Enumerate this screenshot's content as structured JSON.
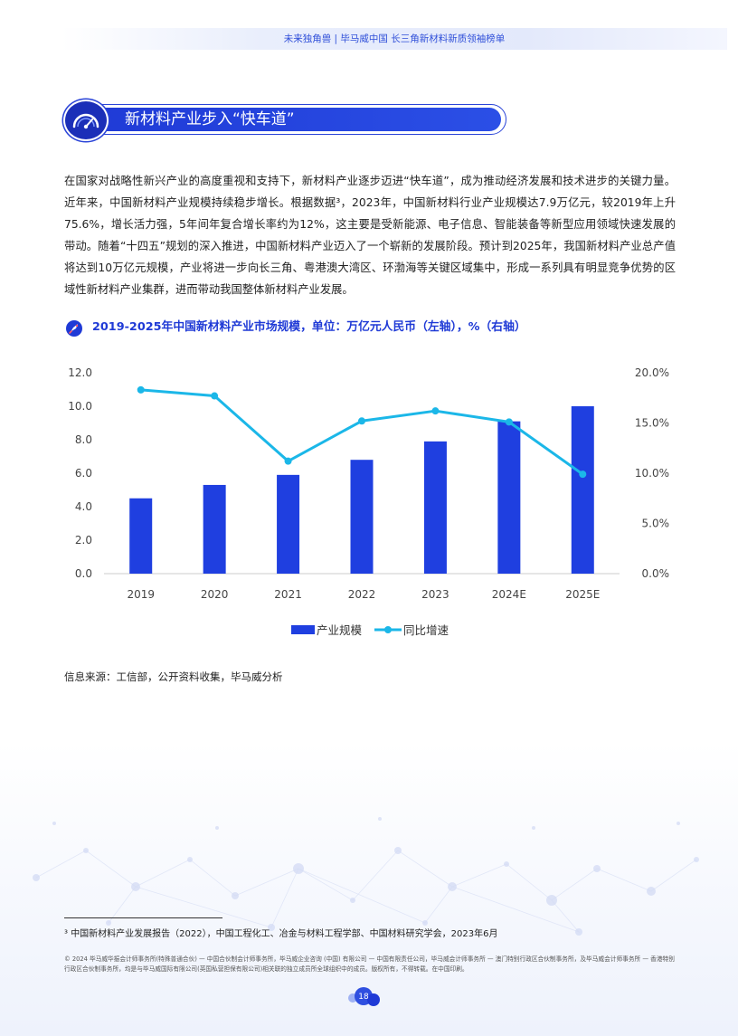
{
  "header": {
    "title": "未来独角兽 | 毕马威中国 长三角新材料新质领袖榜单"
  },
  "section": {
    "title": "新材料产业步入“快车道”",
    "icon": "speedometer-icon"
  },
  "body": {
    "paragraph": "在国家对战略性新兴产业的高度重视和支持下，新材料产业逐步迈进“快车道”，成为推动经济发展和技术进步的关键力量。近年来，中国新材料产业规模持续稳步增长。根据数据³，2023年，中国新材料行业产业规模达7.9万亿元，较2019年上升75.6%，增长活力强，5年间年复合增长率约为12%，这主要是受新能源、电子信息、智能装备等新型应用领域快速发展的带动。随着“十四五”规划的深入推进，中国新材料产业迈入了一个崭新的发展阶段。预计到2025年，我国新材料产业总产值将达到10万亿元规模，产业将进一步向长三角、粤港澳大湾区、环渤海等关键区域集中，形成一系列具有明显竞争优势的区域性新材料产业集群，进而带动我国整体新材料产业发展。"
  },
  "chart_heading": {
    "text": "2019-2025年中国新材料产业市场规模，单位：万亿元人民币（左轴），%（右轴）",
    "icon": "rocket-icon"
  },
  "chart_data": {
    "type": "bar",
    "categories": [
      "2019",
      "2020",
      "2021",
      "2022",
      "2023",
      "2024E",
      "2025E"
    ],
    "series": [
      {
        "name": "产业规模",
        "type": "bar",
        "axis": "left",
        "values": [
          4.5,
          5.3,
          5.9,
          6.8,
          7.9,
          9.1,
          10.0
        ]
      },
      {
        "name": "同比增速",
        "type": "line",
        "axis": "right",
        "values": [
          18.3,
          17.7,
          11.2,
          15.2,
          16.2,
          15.1,
          9.9
        ]
      }
    ],
    "y_left": {
      "ylim": [
        0,
        12
      ],
      "ticks": [
        "0.0",
        "2.0",
        "4.0",
        "6.0",
        "8.0",
        "10.0",
        "12.0"
      ]
    },
    "y_right": {
      "ylim": [
        0,
        20
      ],
      "ticks": [
        "0.0%",
        "5.0%",
        "10.0%",
        "15.0%",
        "20.0%"
      ]
    },
    "legend_position": "bottom",
    "grid": false,
    "colors": {
      "bar": "#1f3fe0",
      "line": "#1bb7e8"
    }
  },
  "source": "信息来源：工信部，公开资料收集，毕马威分析",
  "footnote": "³ 中国新材料产业发展报告（2022），中国工程化工、冶金与材料工程学部、中国材料研究学会，2023年6月",
  "copyright": "© 2024 毕马威华振会计师事务所(特殊普通合伙) — 中国合伙制会计师事务所，毕马威企业咨询 (中国) 有限公司 — 中国有限责任公司，毕马威会计师事务所 — 澳门特别行政区合伙制事务所，及毕马威会计师事务所 — 香港特别行政区合伙制事务所，均是与毕马威国际有限公司(英国私营担保有限公司)相关联的独立成员所全球组织中的成员。版权所有，不得转载。在中国印刷。",
  "page_number": "18"
}
